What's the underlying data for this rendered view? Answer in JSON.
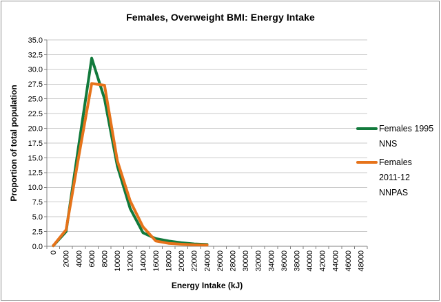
{
  "chart_data": {
    "type": "line",
    "title": "Females, Overweight BMI: Energy Intake",
    "xlabel": "Energy Intake (kJ)",
    "ylabel": "Proportion of total population",
    "ylim": [
      0,
      35
    ],
    "ytick_step": 2.5,
    "grid": true,
    "legend_position": "right",
    "y_tick_labels": [
      "0.0",
      "2.5",
      "5.0",
      "7.5",
      "10.0",
      "12.5",
      "15.0",
      "17.5",
      "20.0",
      "22.5",
      "25.0",
      "27.5",
      "30.0",
      "32.5",
      "35.0"
    ],
    "x_tick_labels": [
      "0",
      "2000",
      "4000",
      "6000",
      "8000",
      "10000",
      "12000",
      "14000",
      "16000",
      "18000",
      "20000",
      "22000",
      "24000",
      "26000",
      "28000",
      "30000",
      "32000",
      "34000",
      "36000",
      "38000",
      "40000",
      "42000",
      "44000",
      "46000",
      "48000"
    ],
    "categories": [
      0,
      2000,
      4000,
      6000,
      8000,
      10000,
      12000,
      14000,
      16000,
      18000,
      20000,
      22000,
      24000,
      26000,
      28000,
      30000,
      32000,
      34000,
      36000,
      38000,
      40000,
      42000,
      44000,
      46000,
      48000
    ],
    "series": [
      {
        "name": "Females 1995 NNS",
        "color": "#127a3c",
        "values": [
          0.1,
          2.5,
          17.3,
          31.9,
          25.0,
          13.6,
          6.4,
          2.3,
          1.3,
          0.9,
          0.6,
          0.4,
          0.3,
          null,
          null,
          null,
          null,
          null,
          null,
          null,
          null,
          null,
          null,
          null,
          null
        ]
      },
      {
        "name": "Females 2011-12 NNPAS",
        "color": "#e6731a",
        "values": [
          0.1,
          2.8,
          15.4,
          27.6,
          27.3,
          14.5,
          7.7,
          3.3,
          0.9,
          0.5,
          0.35,
          0.25,
          0.2,
          null,
          null,
          null,
          null,
          null,
          null,
          null,
          null,
          null,
          null,
          null,
          null
        ]
      }
    ],
    "colors": {
      "gridline": "#c9c9c9",
      "axis": "#808080",
      "border": "#8a8a8a",
      "text": "#000000"
    }
  }
}
